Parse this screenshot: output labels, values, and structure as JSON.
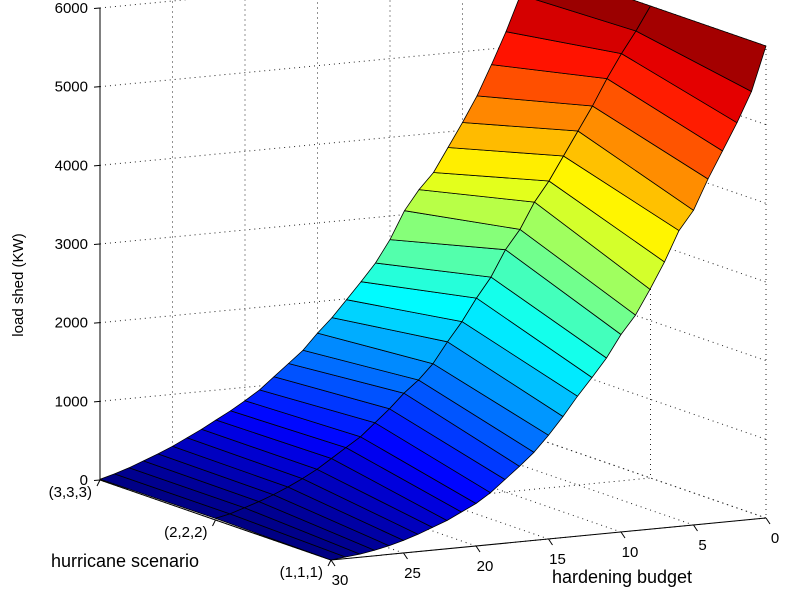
{
  "chart_data": {
    "type": "surface",
    "title": "",
    "xlabel": "hardening budget",
    "ylabel": "hurricane scenario",
    "zlabel": "load shed (KW)",
    "budget_ticks": [
      "0",
      "5",
      "10",
      "15",
      "20",
      "25",
      "30"
    ],
    "scenario_ticks": [
      "(1,1,1)",
      "(2,2,2)",
      "(3,3,3)"
    ],
    "load_ticks": [
      "0",
      "1000",
      "2000",
      "3000",
      "4000",
      "5000",
      "6000"
    ],
    "xlim": [
      0,
      30
    ],
    "zlim": [
      0,
      6000
    ],
    "grid": true,
    "colormap": "jet",
    "budget": [
      0,
      1,
      2,
      3,
      4,
      5,
      6,
      7,
      8,
      9,
      10,
      11,
      12,
      13,
      14,
      15,
      16,
      17,
      18,
      19,
      20,
      21,
      22,
      23,
      24,
      25,
      26,
      27,
      28,
      29,
      30
    ],
    "scenarios": [
      "(1,1,1)",
      "(2,2,2)",
      "(3,3,3)"
    ],
    "load_shed": [
      [
        6000,
        5440,
        5060,
        4720,
        4380,
        4000,
        3760,
        3380,
        3050,
        2740,
        2510,
        2230,
        2000,
        1780,
        1540,
        1320,
        1120,
        960,
        810,
        660,
        540,
        450,
        360,
        290,
        220,
        160,
        110,
        70,
        40,
        20,
        0
      ],
      [
        6000,
        5700,
        5430,
        5130,
        4800,
        4500,
        4200,
        3900,
        3650,
        3320,
        3080,
        2750,
        2500,
        2220,
        1980,
        1720,
        1530,
        1380,
        1200,
        1040,
        880,
        760,
        640,
        520,
        420,
        330,
        250,
        180,
        120,
        60,
        20
      ],
      [
        6000,
        5650,
        5200,
        4800,
        4420,
        4100,
        3800,
        3500,
        3300,
        3050,
        2700,
        2420,
        2200,
        1990,
        1780,
        1600,
        1400,
        1250,
        1100,
        950,
        830,
        720,
        620,
        520,
        430,
        340,
        260,
        190,
        120,
        60,
        10
      ]
    ]
  }
}
